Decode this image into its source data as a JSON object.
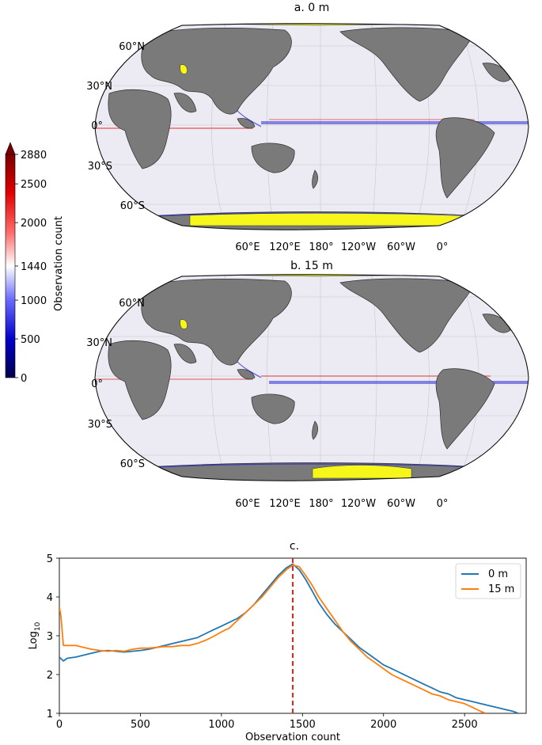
{
  "colors": {
    "ocean": "#ecebf4",
    "land": "#7a7a7a",
    "ice": "#f6f61a",
    "blue_series": "#1f77b4",
    "orange_series": "#ff7f0e",
    "peak_line": "#e8231b"
  },
  "maps": [
    {
      "title": "a. 0 m",
      "lat_labels": [
        "60°N",
        "30°N",
        "0°",
        "30°S",
        "60°S"
      ],
      "lon_labels": [
        "60°E",
        "120°E",
        "180°",
        "120°W",
        "60°W",
        "0°"
      ]
    },
    {
      "title": "b. 15 m",
      "lat_labels": [
        "60°N",
        "30°N",
        "0°",
        "30°S",
        "60°S"
      ],
      "lon_labels": [
        "60°E",
        "120°E",
        "180°",
        "120°W",
        "60°W",
        "0°"
      ]
    }
  ],
  "colorbar": {
    "label": "Observation count",
    "ticks": [
      "2880",
      "2500",
      "2000",
      "1440",
      "1000",
      "500",
      "0"
    ],
    "tick_values": [
      2880,
      2500,
      2000,
      1440,
      1000,
      500,
      0
    ],
    "range": [
      0,
      2880
    ],
    "colormap": "seismic",
    "extend": "max"
  },
  "chart_data": {
    "type": "line",
    "title": "c.",
    "xlabel": "Observation count",
    "ylabel_main": "Log",
    "ylabel_sub": "10",
    "xlim": [
      0,
      2880
    ],
    "ylim": [
      1,
      5
    ],
    "xticks": [
      0,
      500,
      1000,
      1500,
      2000,
      2500
    ],
    "yticks": [
      1,
      2,
      3,
      4,
      5
    ],
    "legend_position": "top-right",
    "vline_x": 1440,
    "series": [
      {
        "name": "0 m",
        "color_key": "blue_series",
        "x": [
          0,
          25,
          50,
          100,
          150,
          200,
          250,
          300,
          350,
          400,
          450,
          500,
          550,
          600,
          650,
          700,
          750,
          800,
          850,
          900,
          950,
          1000,
          1050,
          1100,
          1150,
          1200,
          1250,
          1300,
          1350,
          1400,
          1440,
          1480,
          1520,
          1560,
          1600,
          1650,
          1700,
          1750,
          1800,
          1850,
          1900,
          1950,
          2000,
          2050,
          2100,
          2150,
          2200,
          2250,
          2300,
          2350,
          2400,
          2450,
          2500,
          2550,
          2600,
          2650,
          2700,
          2750,
          2800,
          2830
        ],
        "values": [
          2.45,
          2.35,
          2.42,
          2.45,
          2.5,
          2.55,
          2.6,
          2.62,
          2.6,
          2.58,
          2.6,
          2.62,
          2.65,
          2.7,
          2.75,
          2.8,
          2.85,
          2.9,
          2.95,
          3.05,
          3.15,
          3.25,
          3.35,
          3.45,
          3.6,
          3.8,
          4.05,
          4.3,
          4.55,
          4.75,
          4.85,
          4.7,
          4.45,
          4.15,
          3.85,
          3.55,
          3.3,
          3.1,
          2.9,
          2.7,
          2.55,
          2.4,
          2.25,
          2.15,
          2.05,
          1.95,
          1.85,
          1.75,
          1.65,
          1.55,
          1.5,
          1.4,
          1.35,
          1.3,
          1.25,
          1.2,
          1.15,
          1.1,
          1.05,
          1.0
        ]
      },
      {
        "name": "15 m",
        "color_key": "orange_series",
        "x": [
          0,
          10,
          25,
          50,
          100,
          150,
          200,
          250,
          300,
          350,
          400,
          450,
          500,
          550,
          600,
          650,
          700,
          750,
          800,
          850,
          900,
          950,
          1000,
          1050,
          1100,
          1150,
          1200,
          1250,
          1300,
          1350,
          1400,
          1440,
          1480,
          1520,
          1560,
          1600,
          1650,
          1700,
          1750,
          1800,
          1850,
          1900,
          1950,
          2000,
          2050,
          2100,
          2150,
          2200,
          2250,
          2300,
          2350,
          2400,
          2450,
          2500,
          2550,
          2600,
          2630
        ],
        "values": [
          3.75,
          3.5,
          2.75,
          2.75,
          2.75,
          2.7,
          2.65,
          2.62,
          2.6,
          2.62,
          2.6,
          2.65,
          2.68,
          2.68,
          2.7,
          2.72,
          2.72,
          2.75,
          2.75,
          2.8,
          2.88,
          2.98,
          3.1,
          3.2,
          3.4,
          3.6,
          3.8,
          4.0,
          4.25,
          4.5,
          4.7,
          4.82,
          4.78,
          4.55,
          4.3,
          4.0,
          3.7,
          3.4,
          3.1,
          2.85,
          2.65,
          2.45,
          2.3,
          2.15,
          2.0,
          1.9,
          1.8,
          1.7,
          1.6,
          1.5,
          1.45,
          1.35,
          1.3,
          1.25,
          1.15,
          1.05,
          1.0
        ]
      }
    ]
  }
}
